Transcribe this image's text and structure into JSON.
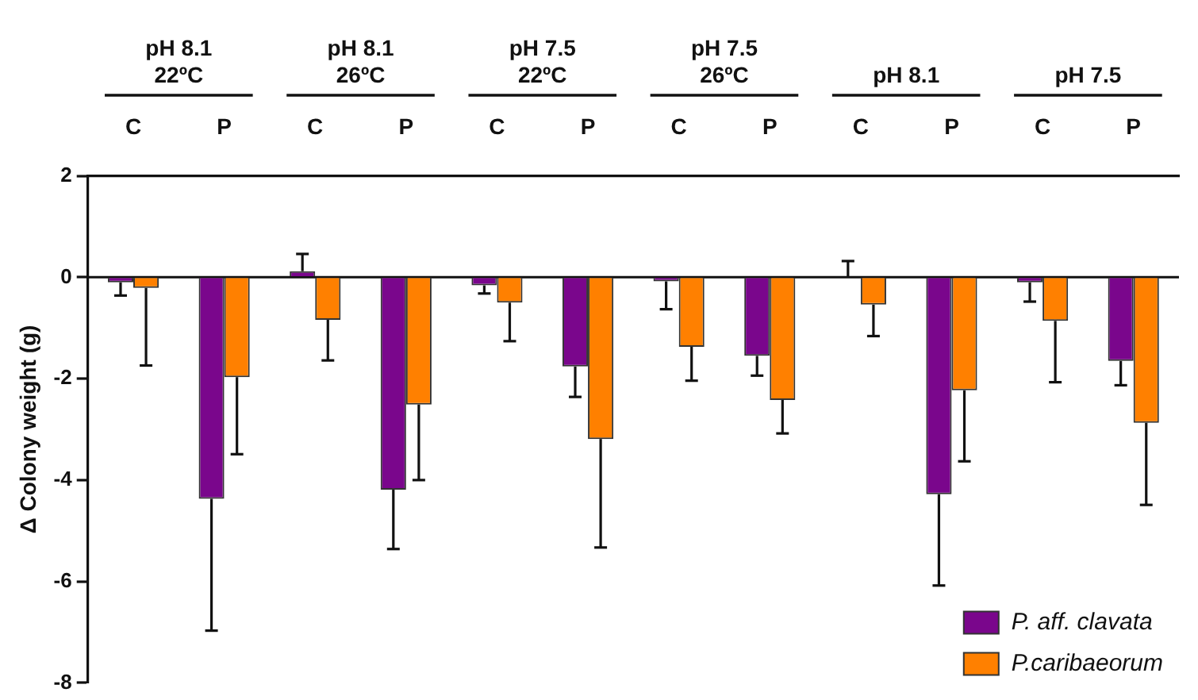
{
  "chart_data": {
    "type": "bar",
    "ylabel": "Δ Colony weight (g)",
    "categories": [
      "C",
      "P",
      "C",
      "P",
      "C",
      "P",
      "C",
      "P",
      "C",
      "P",
      "C",
      "P"
    ],
    "annotations": [
      "pH 8.1\n22ºC",
      "pH 8.1\n26ºC",
      "pH 7.5\n22ºC",
      "pH 7.5\n26ºC",
      "pH 8.1",
      "pH 7.5"
    ],
    "series": [
      {
        "name": "P. aff. clavata",
        "color": "#7a068c",
        "values": [
          -0.1,
          -4.37,
          0.12,
          -4.19,
          -0.16,
          -1.76,
          -0.08,
          -1.55,
          0.02,
          -4.28,
          -0.1,
          -1.65
        ],
        "errors": [
          [
            -0.36,
            -0.1
          ],
          [
            -6.97,
            -4.37
          ],
          [
            0.12,
            0.46
          ],
          [
            -5.36,
            -4.19
          ],
          [
            -0.32,
            -0.16
          ],
          [
            -2.36,
            -1.76
          ],
          [
            -0.63,
            -0.08
          ],
          [
            -1.94,
            -1.55
          ],
          [
            0.02,
            0.32
          ],
          [
            -6.08,
            -4.28
          ],
          [
            -0.48,
            -0.1
          ],
          [
            -2.13,
            -1.65
          ]
        ]
      },
      {
        "name": "P.caribaeorum",
        "color": "#ff8000",
        "values": [
          -0.21,
          -1.97,
          -0.84,
          -2.51,
          -0.5,
          -3.19,
          -1.37,
          -2.42,
          -0.54,
          -2.23,
          -0.86,
          -2.87
        ],
        "errors": [
          [
            -1.74,
            -0.21
          ],
          [
            -3.49,
            -1.97
          ],
          [
            -1.64,
            -0.84
          ],
          [
            -4.0,
            -2.51
          ],
          [
            -1.26,
            -0.5
          ],
          [
            -5.33,
            -3.19
          ],
          [
            -2.04,
            -1.37
          ],
          [
            -3.08,
            -2.42
          ],
          [
            -1.16,
            -0.54
          ],
          [
            -3.63,
            -2.23
          ],
          [
            -2.07,
            -0.86
          ],
          [
            -4.49,
            -2.87
          ]
        ]
      }
    ],
    "ylim": [
      -8,
      2
    ],
    "yticks": [
      -8,
      -6,
      -4,
      -2,
      0,
      2
    ],
    "grid": false,
    "legend": "bottom right",
    "ref_lines": [
      {
        "axis": "y",
        "value": 0
      }
    ]
  }
}
